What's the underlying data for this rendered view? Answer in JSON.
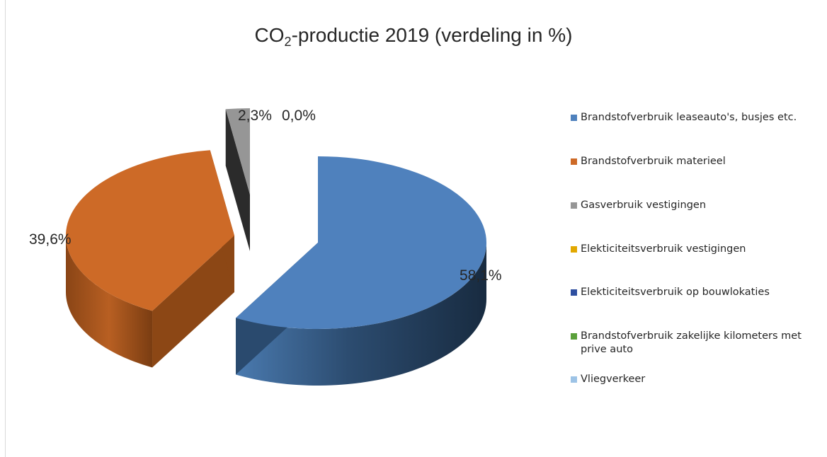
{
  "chart_data": {
    "type": "pie",
    "title_main": "CO",
    "title_sub": "2",
    "title_rest": "-productie 2019 (verdeling in %)",
    "slices": [
      {
        "name": "Brandstofverbruik leaseauto's, busjes etc.",
        "value": 58.1,
        "label": "58,1%",
        "color": "#4f81bd"
      },
      {
        "name": "Brandstofverbruik materieel",
        "value": 39.6,
        "label": "39,6%",
        "color": "#cd6a27"
      },
      {
        "name": "Gasverbruik vestigingen",
        "value": 2.3,
        "label": "2,3%",
        "color": "#969696"
      },
      {
        "name": "Elekticiteitsverbruik vestigingen",
        "value": 0.0,
        "label": "0,0%",
        "color": "#e2a800"
      },
      {
        "name": "Elekticiteitsverbruik op bouwlokaties",
        "value": 0.0,
        "label": "",
        "color": "#2e4fa0"
      },
      {
        "name": "Brandstofverbruik zakelijke kilometers met prive auto",
        "value": 0.0,
        "label": "",
        "color": "#5aa03a"
      },
      {
        "name": "Vliegverkeer",
        "value": 0.0,
        "label": "",
        "color": "#9dc3e6"
      }
    ],
    "legend_position": "right"
  }
}
